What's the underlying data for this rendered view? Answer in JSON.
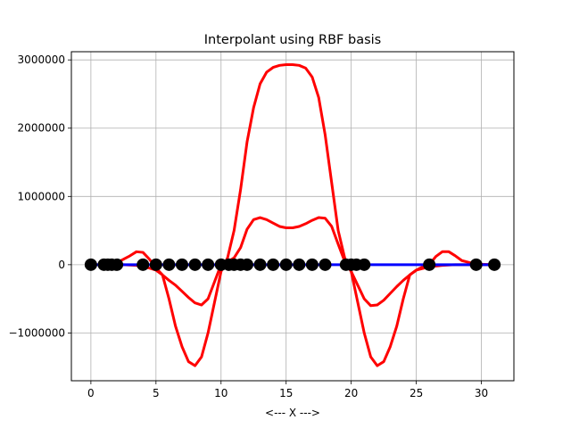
{
  "chart_data": {
    "type": "line",
    "title": "Interpolant using RBF basis",
    "xlabel": "<--- X --->",
    "ylabel": "",
    "xlim": [
      -1.5,
      32.5
    ],
    "ylim": [
      -1700000,
      3120000
    ],
    "xticks": [
      0,
      5,
      10,
      15,
      20,
      25,
      30
    ],
    "yticks": [
      -1000000,
      0,
      1000000,
      2000000,
      3000000
    ],
    "xtick_labels": [
      "0",
      "5",
      "10",
      "15",
      "20",
      "25",
      "30"
    ],
    "ytick_labels": [
      "−1000000",
      "0",
      "1000000",
      "2000000",
      "3000000"
    ],
    "grid": true,
    "colors": {
      "interpolant": "#ff0000",
      "function": "#0000ff",
      "nodes": "#000000",
      "grid": "#b0b0b0"
    },
    "series": [
      {
        "color": "#ff0000",
        "x": [
          1.5,
          2.5,
          3.5,
          4.0,
          4.5,
          5.0,
          5.5,
          6.0,
          6.5,
          7.0,
          7.5,
          8.0,
          8.5,
          9.0,
          9.5,
          10.0,
          10.5,
          11.0,
          11.5,
          12.0,
          12.5,
          13.0,
          13.5,
          14.0,
          14.5,
          15.0,
          15.5,
          16.0,
          16.5,
          17.0,
          17.5,
          18.0,
          18.5,
          19.0,
          19.5,
          20.0,
          20.5,
          21.0,
          21.5,
          22.0,
          22.5,
          23.0,
          23.5,
          24.0,
          24.5,
          25.0,
          26.0,
          27.0,
          28.0,
          29.5,
          31.0
        ],
        "y": [
          0,
          0,
          -10000,
          -30000,
          -50000,
          -80000,
          -150000,
          -500000,
          -900000,
          -1200000,
          -1420000,
          -1480000,
          -1350000,
          -1000000,
          -550000,
          -100000,
          100000,
          500000,
          1100000,
          1800000,
          2300000,
          2650000,
          2820000,
          2890000,
          2920000,
          2930000,
          2930000,
          2920000,
          2880000,
          2750000,
          2450000,
          1900000,
          1200000,
          500000,
          100000,
          -100000,
          -550000,
          -1000000,
          -1350000,
          -1480000,
          -1420000,
          -1200000,
          -900000,
          -500000,
          -150000,
          -80000,
          -30000,
          -10000,
          0,
          0,
          0
        ]
      },
      {
        "color": "#ff0000",
        "x": [
          1.0,
          2.0,
          3.0,
          3.5,
          4.0,
          4.5,
          5.0,
          5.5,
          6.0,
          6.5,
          7.0,
          7.5,
          8.0,
          8.5,
          9.0,
          9.5,
          10.0,
          10.5,
          11.0,
          11.5,
          12.0,
          12.5,
          13.0,
          13.5,
          14.0,
          14.5,
          15.0,
          15.5,
          16.0,
          16.5,
          17.0,
          17.5,
          18.0,
          18.5,
          19.0,
          19.5,
          20.0,
          20.5,
          21.0,
          21.5,
          22.0,
          22.5,
          23.0,
          23.5,
          24.0,
          24.5,
          25.0,
          25.5,
          26.0,
          26.5,
          27.0,
          27.5,
          28.0,
          28.5,
          29.5,
          31.0
        ],
        "y": [
          0,
          30000,
          130000,
          190000,
          180000,
          80000,
          -50000,
          -150000,
          -230000,
          -300000,
          -390000,
          -480000,
          -560000,
          -590000,
          -500000,
          -250000,
          0,
          40000,
          100000,
          250000,
          520000,
          660000,
          690000,
          660000,
          610000,
          560000,
          540000,
          540000,
          560000,
          600000,
          650000,
          690000,
          680000,
          560000,
          300000,
          50000,
          -100000,
          -300000,
          -500000,
          -600000,
          -590000,
          -520000,
          -420000,
          -320000,
          -230000,
          -150000,
          -80000,
          -30000,
          0,
          120000,
          190000,
          190000,
          130000,
          60000,
          10000,
          0
        ]
      },
      {
        "color": "#0000ff",
        "x": [
          0.0,
          31.0
        ],
        "y": [
          0,
          0
        ]
      }
    ],
    "nodes": {
      "color": "#000000",
      "x": [
        0.0,
        1.0,
        1.3,
        1.6,
        2.0,
        4.0,
        5.0,
        6.0,
        7.0,
        8.0,
        9.0,
        10.0,
        10.6,
        11.0,
        11.5,
        12.0,
        13.0,
        14.0,
        15.0,
        16.0,
        17.0,
        18.0,
        19.6,
        20.0,
        20.4,
        21.0,
        26.0,
        29.6,
        31.0
      ],
      "y": [
        0,
        0,
        0,
        0,
        0,
        0,
        0,
        0,
        0,
        0,
        0,
        0,
        0,
        0,
        0,
        0,
        0,
        0,
        0,
        0,
        0,
        0,
        0,
        0,
        0,
        0,
        0,
        0,
        0
      ]
    }
  }
}
